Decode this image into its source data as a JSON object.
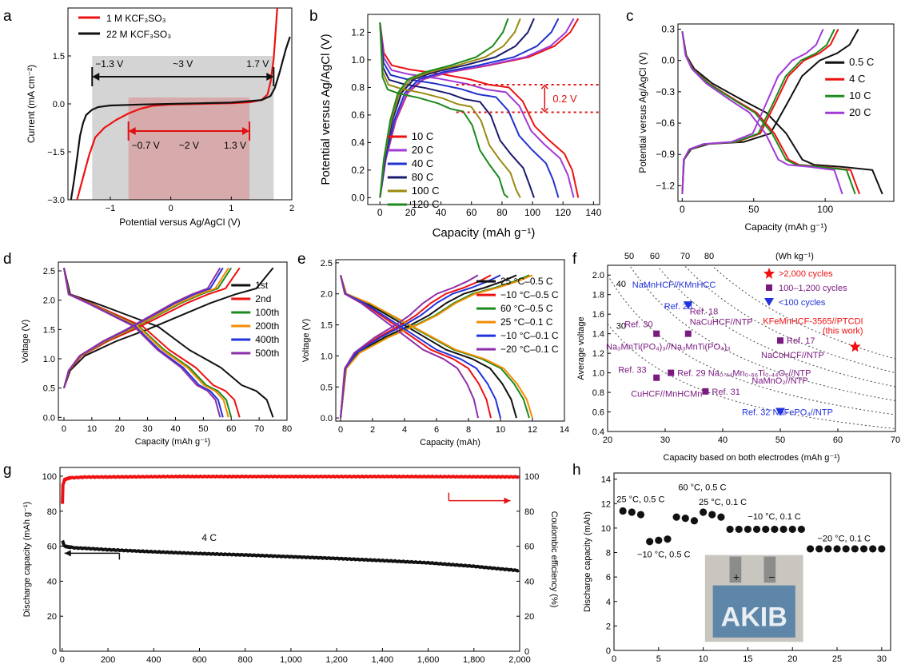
{
  "panels": {
    "a": "a",
    "b": "b",
    "c": "c",
    "d": "d",
    "e": "e",
    "f": "f",
    "g": "g",
    "h": "h"
  },
  "chart_data": [
    {
      "panel": "a",
      "type": "line",
      "xlabel": "Potential versus Ag/AgCl (V)",
      "ylabel": "Current (mA cm⁻²)",
      "xlim": [
        -1.7,
        2.0
      ],
      "ylim": [
        -3.0,
        3.0
      ],
      "xticks": [
        -1,
        0,
        1,
        2
      ],
      "yticks": [
        -3.0,
        -1.5,
        0.0,
        1.5
      ],
      "series": [
        {
          "name": "1 M KCF₃SO₃",
          "color": "#ee1111",
          "x": [
            -1.55,
            -1.45,
            -1.35,
            -1.25,
            -1.1,
            -0.9,
            -0.7,
            -0.5,
            -0.3,
            0,
            0.5,
            1.0,
            1.3,
            1.5,
            1.6,
            1.65,
            1.7,
            1.73,
            1.76
          ],
          "y": [
            -3.0,
            -2.3,
            -1.6,
            -1.05,
            -0.75,
            -0.5,
            -0.3,
            -0.15,
            -0.06,
            -0.02,
            0.0,
            0.02,
            0.05,
            0.12,
            0.3,
            0.7,
            1.4,
            2.2,
            3.0
          ]
        },
        {
          "name": "22 M KCF₃SO₃",
          "color": "#111111",
          "x": [
            -1.65,
            -1.6,
            -1.55,
            -1.5,
            -1.45,
            -1.4,
            -1.3,
            -1.2,
            -1.0,
            -0.5,
            0,
            0.5,
            1.0,
            1.5,
            1.65,
            1.72,
            1.8,
            1.9,
            1.97
          ],
          "y": [
            -3.0,
            -2.4,
            -1.7,
            -1.0,
            -0.6,
            -0.35,
            -0.18,
            -0.1,
            -0.05,
            -0.02,
            0,
            0.02,
            0.04,
            0.12,
            0.25,
            0.5,
            1.0,
            1.7,
            2.1
          ]
        }
      ],
      "annotations": {
        "left_wide": "−1.3 V",
        "mid_wide": "~3 V",
        "right_wide": "1.7 V",
        "left_narrow": "−0.7 V",
        "mid_narrow": "~2 V",
        "right_narrow": "1.3 V"
      },
      "windows": {
        "wide": [
          -1.3,
          1.7
        ],
        "narrow": [
          -0.7,
          1.3
        ],
        "wide_arrow_y": 0.85,
        "narrow_arrow_y": -0.85
      }
    },
    {
      "panel": "b",
      "type": "line",
      "xlabel": "Capacity (mAh g⁻¹)",
      "ylabel": "Potential versus Ag/AgCl (V)",
      "xlim": [
        -8,
        144
      ],
      "ylim": [
        -0.05,
        1.33
      ],
      "xticks": [
        0,
        20,
        40,
        60,
        80,
        100,
        120,
        140
      ],
      "yticks": [
        0.0,
        0.2,
        0.4,
        0.6,
        0.8,
        1.0,
        1.2
      ],
      "legend": [
        "10 C",
        "20 C",
        "40 C",
        "80 C",
        "100 C",
        "120 C"
      ],
      "colors": [
        "#ee1111",
        "#a23ad6",
        "#2233cc",
        "#1a1a6e",
        "#9a8a10",
        "#1d8a1d"
      ],
      "capacities": [
        130,
        127,
        117,
        101,
        92,
        84
      ],
      "annotation": "0.2 V",
      "gap_lines_y": [
        0.82,
        0.62
      ]
    },
    {
      "panel": "c",
      "type": "line",
      "xlabel": "Capacity (mAh g⁻¹)",
      "ylabel": "Potential versus Ag/AgCl (V)",
      "xlim": [
        -3,
        148
      ],
      "ylim": [
        -1.35,
        0.35
      ],
      "xticks": [
        0,
        50,
        100
      ],
      "yticks": [
        -1.2,
        -0.9,
        -0.6,
        -0.3,
        0.0,
        0.3
      ],
      "legend": [
        "0.5 C",
        "4 C",
        "10 C",
        "20 C"
      ],
      "colors": [
        "#111111",
        "#ee1111",
        "#1d8a1d",
        "#a23ad6"
      ],
      "capacities": [
        140,
        124,
        121,
        112
      ]
    },
    {
      "panel": "d",
      "type": "line",
      "xlabel": "Capacity (mAh g⁻¹)",
      "ylabel": "Voltage (V)",
      "xlim": [
        -2,
        80
      ],
      "ylim": [
        -0.05,
        2.65
      ],
      "xticks": [
        0,
        10,
        20,
        30,
        40,
        50,
        60,
        70,
        80
      ],
      "yticks": [
        0.0,
        0.5,
        1.0,
        1.5,
        2.0,
        2.5
      ],
      "legend": [
        "1st",
        "2nd",
        "100th",
        "200th",
        "400th",
        "500th"
      ],
      "colors": [
        "#111111",
        "#ee1111",
        "#1d8a1d",
        "#f28c00",
        "#2233dd",
        "#8e2ea8"
      ],
      "capacities": [
        75,
        63,
        60,
        59,
        57,
        56
      ]
    },
    {
      "panel": "e",
      "type": "line",
      "xlabel": "Capacity (mAh)",
      "ylabel": "Voltage (V)",
      "xlim": [
        -0.3,
        14
      ],
      "ylim": [
        -0.05,
        2.55
      ],
      "xticks": [
        0,
        2,
        4,
        6,
        8,
        10,
        12,
        14
      ],
      "yticks": [
        0.0,
        0.5,
        1.0,
        1.5,
        2.0,
        2.5
      ],
      "legend": [
        "25 °C–0.5 C",
        "−10 °C–0.5 C",
        "60 °C–0.5 C",
        "25 °C–0.1 C",
        "−10 °C–0.1 C",
        "−20 °C–0.1 C"
      ],
      "colors": [
        "#111111",
        "#ee1111",
        "#1d8a1d",
        "#f28c00",
        "#2233dd",
        "#8e2ea8"
      ],
      "capacities": [
        11.0,
        9.4,
        11.8,
        12.0,
        10.0,
        8.6
      ]
    },
    {
      "panel": "f",
      "type": "scatter",
      "xlabel": "Capacity based on both electrodes (mAh g⁻¹)",
      "ylabel": "Average voltage",
      "xlim": [
        20,
        70
      ],
      "ylim": [
        0.4,
        2.1
      ],
      "xticks": [
        20,
        30,
        40,
        50,
        60,
        70
      ],
      "yticks": [
        0.4,
        0.6,
        0.8,
        1.0,
        1.2,
        1.4,
        1.6,
        1.8,
        2.0
      ],
      "top_axis_label": "(Wh kg⁻¹)",
      "top_ticks": [
        "50",
        "60",
        "70",
        "80"
      ],
      "energy_curves": [
        30,
        40,
        50,
        60,
        70,
        80
      ],
      "legend": [
        {
          "label": ">2,000 cycles",
          "marker": "star",
          "color": "#ee1111"
        },
        {
          "label": "100–1,200 cycles",
          "marker": "square",
          "color": "#7a1a80"
        },
        {
          "label": "<100 cycles",
          "marker": "triangle",
          "color": "#2233dd"
        }
      ],
      "points": [
        {
          "x": 63,
          "y": 1.27,
          "marker": "star",
          "color": "#ee1111",
          "labels": [
            "KFeMnHCF-3565//PTCDI",
            "(this work)"
          ]
        },
        {
          "x": 34,
          "y": 1.69,
          "marker": "triangle",
          "color": "#2233dd",
          "labels": [
            "NaMnHCF//KMnHCC",
            "Ref. 28"
          ]
        },
        {
          "x": 28.5,
          "y": 1.4,
          "marker": "square",
          "color": "#7a1a80",
          "labels": [
            "Ref. 30",
            "Na₃MnTi(PO₄)₃//Na₃MnTi(PO₄)₃"
          ]
        },
        {
          "x": 34,
          "y": 1.4,
          "marker": "square",
          "color": "#7a1a80",
          "labels": [
            "Ref. 18",
            "NaCuHCF//NTP"
          ]
        },
        {
          "x": 50,
          "y": 1.33,
          "marker": "square",
          "color": "#7a1a80",
          "labels": [
            "Ref. 17",
            "NaCoHCF//NTP"
          ]
        },
        {
          "x": 31,
          "y": 1.0,
          "marker": "square",
          "color": "#7a1a80",
          "labels": [
            "Ref. 29 Na₀.₄₄Mn₀.₆₆Ti₀.₄₄O₂//NTP"
          ]
        },
        {
          "x": 28.5,
          "y": 0.95,
          "marker": "square",
          "color": "#7a1a80",
          "labels": [
            "Ref. 33",
            "CuHCF//MnHCMn"
          ]
        },
        {
          "x": 37,
          "y": 0.81,
          "marker": "square",
          "color": "#7a1a80",
          "labels": [
            "Ref. 31",
            "NaMnO₂//NTP"
          ]
        },
        {
          "x": 50,
          "y": 0.6,
          "marker": "triangle",
          "color": "#2233dd",
          "labels": [
            "Ref. 32 NaFePO₄//NTP"
          ]
        }
      ]
    },
    {
      "panel": "g",
      "type": "scatter",
      "xlabel": "Cycle number",
      "ylabel": "Discharge capacity (mAh g⁻¹)",
      "y2label": "Coulombic efficiency (%)",
      "xlim": [
        -10,
        2000
      ],
      "ylim": [
        0,
        105
      ],
      "y2lim": [
        0,
        105
      ],
      "xticks": [
        0,
        200,
        400,
        600,
        800,
        1000,
        1200,
        1400,
        1600,
        1800,
        2000
      ],
      "xticklabels": [
        "0",
        "200",
        "400",
        "600",
        "800",
        "1,000",
        "1,200",
        "1,400",
        "1,600",
        "1,800",
        "2,000"
      ],
      "yticks": [
        0,
        20,
        40,
        60,
        80,
        100
      ],
      "annotation": "4 C",
      "series": [
        {
          "name": "Discharge capacity",
          "axis": "left",
          "color": "#111111",
          "x": [
            1,
            10,
            30,
            60,
            100,
            200,
            400,
            600,
            800,
            1000,
            1200,
            1400,
            1600,
            1800,
            2000
          ],
          "y": [
            63,
            60,
            59.5,
            59,
            58.8,
            58,
            56.8,
            55.8,
            55,
            54,
            53,
            51.8,
            50.5,
            48.5,
            46
          ]
        },
        {
          "name": "Coulombic efficiency",
          "axis": "right",
          "color": "#ee1111",
          "x": [
            1,
            3,
            10,
            30,
            100,
            500,
            1000,
            1500,
            2000
          ],
          "y": [
            84,
            95,
            98,
            99,
            99.5,
            99.8,
            99.8,
            99.8,
            99.6
          ]
        }
      ]
    },
    {
      "panel": "h",
      "type": "scatter",
      "xlabel": "Cycle number",
      "ylabel": "Discharge capacity (mAh)",
      "xlim": [
        0,
        31
      ],
      "ylim": [
        0,
        14.5
      ],
      "xticks": [
        0,
        5,
        10,
        15,
        20,
        25,
        30
      ],
      "yticks": [
        0,
        2,
        4,
        6,
        8,
        10,
        12,
        14
      ],
      "x": [
        1,
        2,
        3,
        4,
        5,
        6,
        7,
        8,
        9,
        10,
        11,
        12,
        13,
        14,
        15,
        16,
        17,
        18,
        19,
        20,
        21,
        22,
        23,
        24,
        25,
        26,
        27,
        28,
        29,
        30
      ],
      "y": [
        11.4,
        11.3,
        11.1,
        8.9,
        9.0,
        9.1,
        10.9,
        10.8,
        10.6,
        11.3,
        11.1,
        10.9,
        9.9,
        9.9,
        9.9,
        9.9,
        9.9,
        9.9,
        9.9,
        9.9,
        9.9,
        8.3,
        8.3,
        8.3,
        8.3,
        8.3,
        8.3,
        8.3,
        8.3,
        8.3
      ],
      "annotations": [
        "25 °C,  0.5 C",
        "60 °C,  0.5 C",
        "25 °C,  0.1 C",
        "−10 °C,  0.1 C",
        "−20 °C,  0.1 C",
        "−10 °C,  0.5 C"
      ],
      "inset_text": {
        "brand": "AKIB",
        "plus": "+",
        "minus": "−"
      }
    }
  ]
}
